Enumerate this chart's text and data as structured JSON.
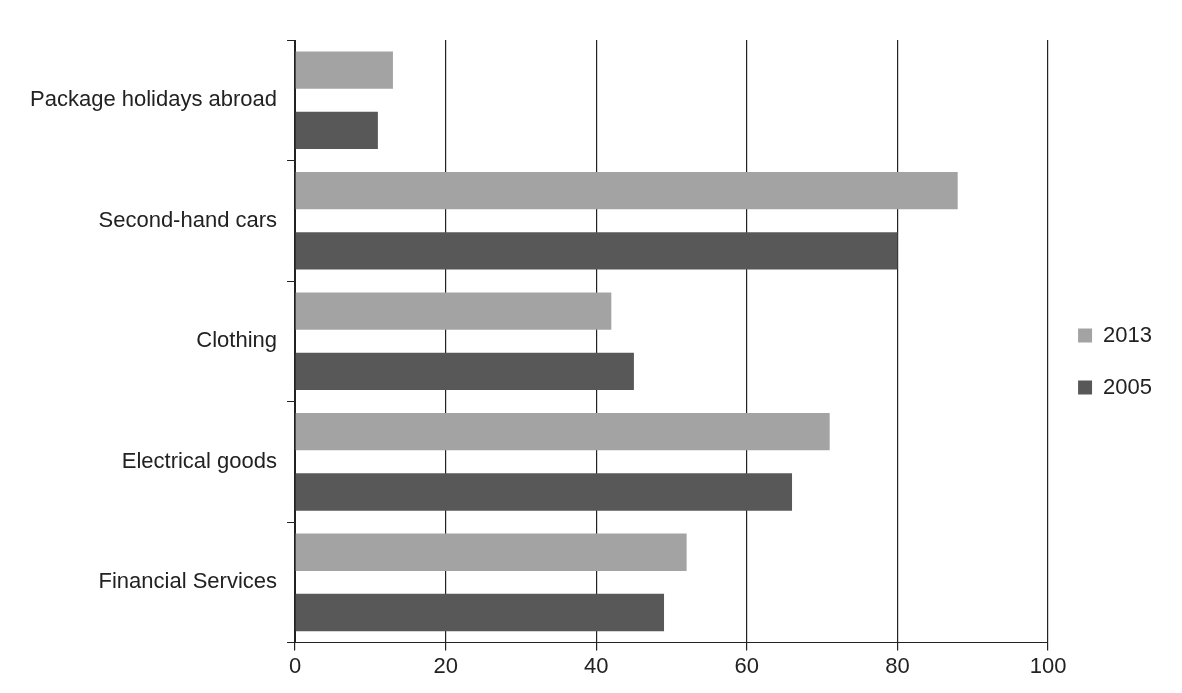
{
  "chart_data": {
    "type": "bar",
    "orientation": "horizontal",
    "categories": [
      "Package holidays abroad",
      "Second-hand cars",
      "Clothing",
      "Electrical goods",
      "Financial Services"
    ],
    "series": [
      {
        "name": "2013",
        "color": "#a3a3a3",
        "values": [
          13,
          88,
          42,
          71,
          52
        ]
      },
      {
        "name": "2005",
        "color": "#585858",
        "values": [
          11,
          80,
          45,
          66,
          49
        ]
      }
    ],
    "xlim": [
      0,
      100
    ],
    "xticks": [
      0,
      20,
      40,
      60,
      80,
      100
    ],
    "grid": "x",
    "legend": "right"
  }
}
